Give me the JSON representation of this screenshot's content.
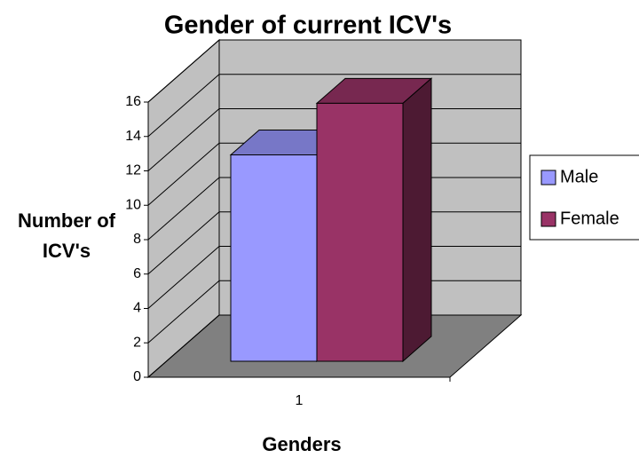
{
  "chart_data": {
    "type": "bar3d",
    "title": "Gender of current ICV's",
    "x_label": "Genders",
    "y_label": "Number of ICV's",
    "categories": [
      "1"
    ],
    "series": [
      {
        "name": "Male",
        "color": "#9999ff",
        "values": [
          12
        ]
      },
      {
        "name": "Female",
        "color": "#993366",
        "values": [
          15
        ]
      }
    ],
    "ylim": [
      0,
      16
    ],
    "yticks": [
      0,
      2,
      4,
      6,
      8,
      10,
      12,
      14,
      16
    ],
    "grid": true,
    "legend": "right"
  }
}
